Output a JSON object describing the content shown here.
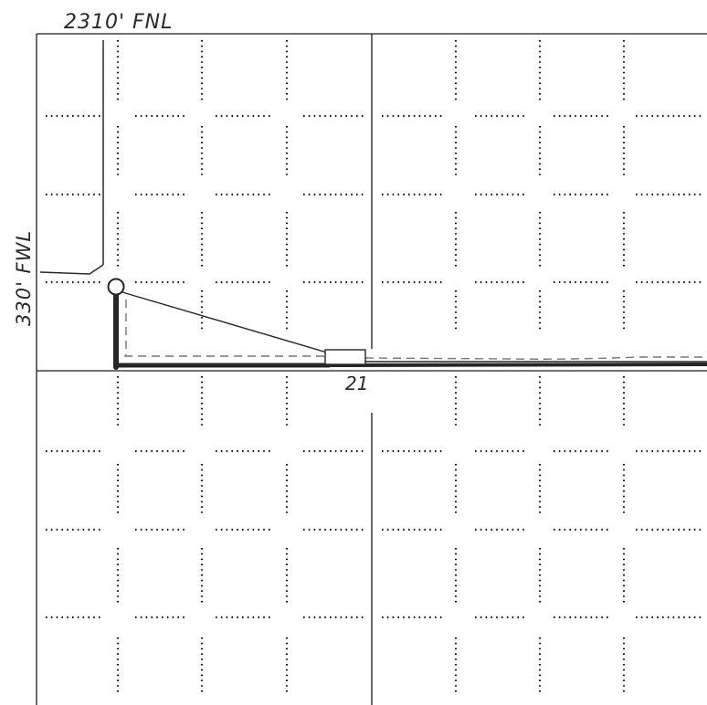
{
  "labels": {
    "fnl": "2310' FNL",
    "fwl": "330' FWL",
    "section": "21"
  },
  "colors": {
    "paper": "#ffffff",
    "grid_dots": "#1a1a1a",
    "section_lines": "#1c1c1c",
    "pencil": "#2a2a2a",
    "dashed": "#777777"
  }
}
